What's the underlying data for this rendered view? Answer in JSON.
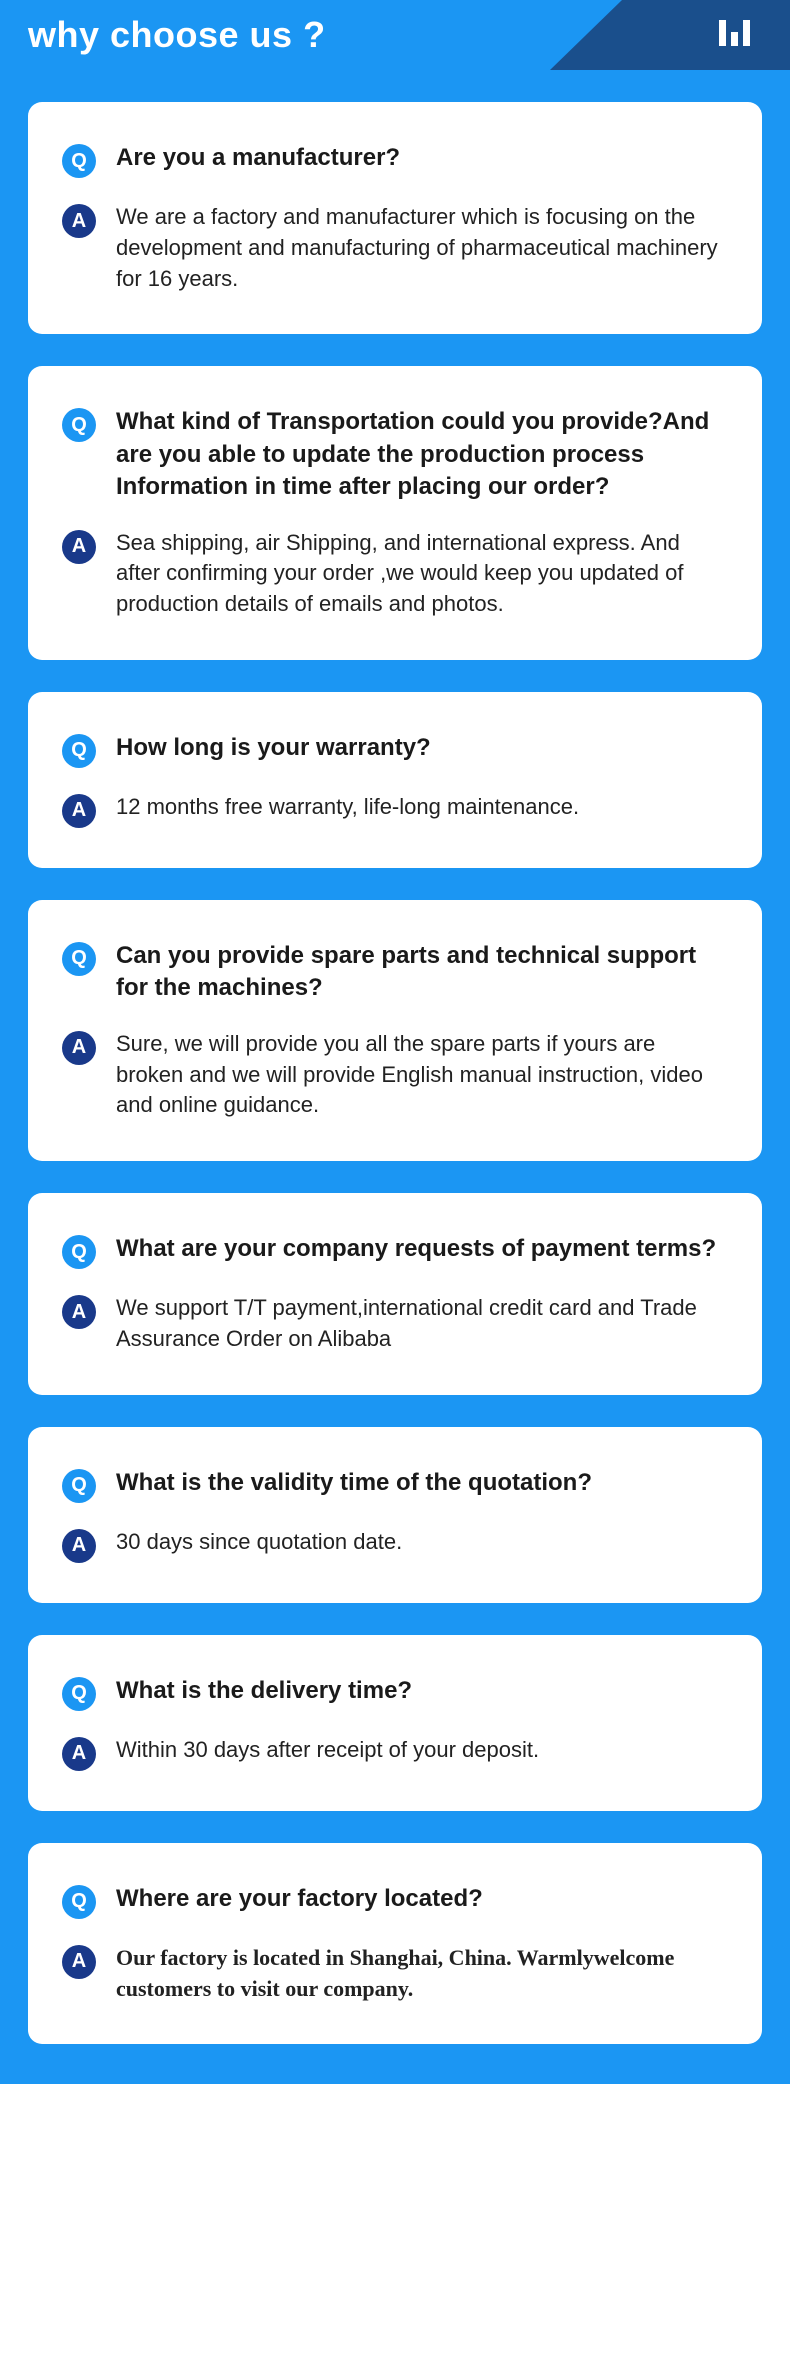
{
  "header": {
    "title": "why choose us ?",
    "bg_color": "#1b96f3",
    "accent_color": "#1a4f8c",
    "title_color": "#ffffff",
    "title_fontsize": 36
  },
  "content": {
    "bg_color": "#1b96f3",
    "card_bg": "#ffffff",
    "card_radius": 14,
    "q_badge_color": "#1b96f3",
    "a_badge_color": "#19398a",
    "badge_text_color": "#ffffff",
    "q_label": "Q",
    "a_label": "A",
    "q_fontsize": 24,
    "a_fontsize": 22,
    "q_color": "#1a1a1a",
    "a_color": "#222222"
  },
  "faq": [
    {
      "q": "Are you a manufacturer?",
      "a": "We are a factory and manufacturer which is focusing on the development and manufacturing of pharmaceutical machinery for 16 years.",
      "a_bold": false
    },
    {
      "q": "What kind of Transportation could you provide?And are you able to update the production process Information in time after placing our order?",
      "a": "Sea shipping, air Shipping, and international express. And after confirming your order ,we would keep you updated of production details of emails and photos.",
      "a_bold": false
    },
    {
      "q": "How long is your warranty?",
      "a": "12 months free warranty, life-long maintenance.",
      "a_bold": false
    },
    {
      "q": "Can you provide spare parts and technical support for the machines?",
      "a": "Sure, we will provide you all the spare parts if yours are broken and we will provide English manual instruction, video and online guidance.",
      "a_bold": false
    },
    {
      "q": "What are your company requests of payment terms?",
      "a": "We support T/T payment,international credit card and Trade Assurance Order on Alibaba",
      "a_bold": false
    },
    {
      "q": "What is the validity time of the quotation?",
      "a": "30 days since quotation date.",
      "a_bold": false
    },
    {
      "q": "What is the delivery time?",
      "a": "Within 30 days after receipt of your deposit.",
      "a_bold": false
    },
    {
      "q": "Where are your factory located?",
      "a": "Our factory is located in Shanghai, China. Warmlywelcome customers to visit our company.",
      "a_bold": true
    }
  ]
}
